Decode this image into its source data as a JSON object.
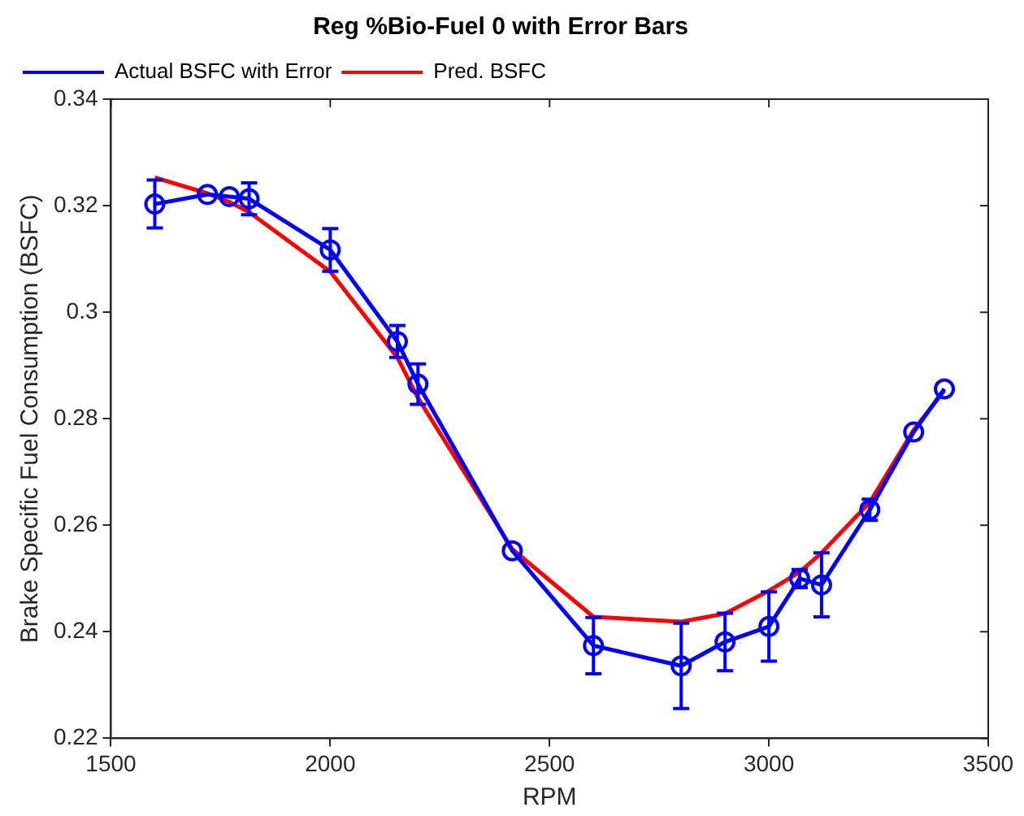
{
  "chart_data": {
    "type": "line",
    "title": "Reg %Bio-Fuel 0 with Error Bars",
    "xlabel": "RPM",
    "ylabel": "Brake Specific Fuel Consumption (BSFC)",
    "x": [
      1600,
      1720,
      1770,
      1815,
      2000,
      2153,
      2200,
      2415,
      2600,
      2800,
      2900,
      3000,
      3070,
      3120,
      3230,
      3330,
      3400
    ],
    "series": [
      {
        "name": "Actual BSFC with Error",
        "color": "#0000ff",
        "marker": "circle",
        "values": [
          0.3203,
          0.3221,
          0.3217,
          0.3213,
          0.3117,
          0.2945,
          0.2865,
          0.2552,
          0.2374,
          0.2336,
          0.2381,
          0.241,
          0.25,
          0.2488,
          0.2629,
          0.2775,
          0.2856
        ],
        "errors": [
          0.0045,
          null,
          null,
          0.003,
          0.004,
          0.003,
          0.0038,
          null,
          0.0053,
          0.008,
          0.0054,
          0.0065,
          0.0017,
          0.006,
          0.002,
          null,
          null
        ]
      },
      {
        "name": "Pred. BSFC",
        "color": "#ff0000",
        "marker": "none",
        "values": [
          0.3253,
          0.3223,
          0.3207,
          0.3188,
          0.3076,
          0.2915,
          0.2839,
          0.2555,
          0.2428,
          0.2419,
          0.2434,
          0.2477,
          0.2512,
          0.2548,
          0.2643,
          0.2779,
          0.2853
        ]
      }
    ],
    "xlim": [
      1500,
      3500
    ],
    "xticks": [
      1500,
      2000,
      2500,
      3000,
      3500
    ],
    "ylim": [
      0.22,
      0.34
    ],
    "yticks": [
      0.22,
      0.24,
      0.26,
      0.28,
      0.3,
      0.32,
      0.34
    ],
    "grid": false,
    "legend": "top left",
    "line_style": "solid"
  }
}
